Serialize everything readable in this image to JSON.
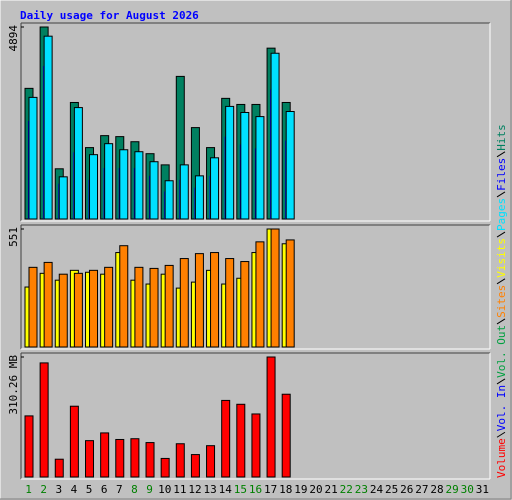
{
  "chart_data": [
    {
      "type": "bar",
      "title": "Daily usage for August 2026",
      "categories": [
        "1",
        "2",
        "3",
        "4",
        "5",
        "6",
        "7",
        "8",
        "9",
        "10",
        "11",
        "12",
        "13",
        "14",
        "15",
        "16",
        "17",
        "18",
        "19",
        "20",
        "21",
        "22",
        "23",
        "24",
        "25",
        "26",
        "27",
        "28",
        "29",
        "30",
        "31"
      ],
      "category_colors": [
        "#008000",
        "#008000",
        "#000000",
        "#000000",
        "#000000",
        "#000000",
        "#000000",
        "#008000",
        "#008000",
        "#000000",
        "#000000",
        "#000000",
        "#000000",
        "#000000",
        "#008000",
        "#008000",
        "#000000",
        "#000000",
        "#000000",
        "#000000",
        "#000000",
        "#008000",
        "#008000",
        "#000000",
        "#000000",
        "#000000",
        "#000000",
        "#000000",
        "#008000",
        "#008000",
        "#000000"
      ],
      "ylim": [
        0,
        4894
      ],
      "yticks": [
        4894
      ],
      "series": [
        {
          "name": "Hits",
          "color": "#008060",
          "values": [
            3330,
            4894,
            1280,
            2970,
            1820,
            2125,
            2100,
            1970,
            1665,
            1380,
            3635,
            2330,
            1820,
            3075,
            2920,
            2920,
            4355,
            2970,
            null,
            null,
            null,
            null,
            null,
            null,
            null,
            null,
            null,
            null,
            null,
            null,
            null
          ]
        },
        {
          "name": "Files",
          "color": "#0000ff",
          "values": [
            2500,
            3900,
            900,
            1700,
            1000,
            1300,
            1300,
            1300,
            1100,
            700,
            1000,
            800,
            1100,
            2100,
            1900,
            1800,
            3300,
            2000,
            null,
            null,
            null,
            null,
            null,
            null,
            null,
            null,
            null,
            null,
            null,
            null,
            null
          ]
        },
        {
          "name": "Pages",
          "color": "#00e0ff",
          "values": [
            3100,
            4660,
            1075,
            2840,
            1640,
            1920,
            1765,
            1715,
            1460,
            975,
            1380,
            1100,
            1560,
            2870,
            2715,
            2610,
            4225,
            2740,
            null,
            null,
            null,
            null,
            null,
            null,
            null,
            null,
            null,
            null,
            null,
            null,
            null
          ]
        }
      ]
    },
    {
      "type": "bar",
      "ylim": [
        0,
        551
      ],
      "yticks": [
        551
      ],
      "series": [
        {
          "name": "Visits",
          "color": "#ffff00",
          "values": [
            280,
            344,
            312,
            358,
            349,
            340,
            441,
            312,
            294,
            340,
            275,
            303,
            358,
            294,
            321,
            441,
            551,
            482,
            null,
            null,
            null,
            null,
            null,
            null,
            null,
            null,
            null,
            null,
            null,
            null,
            null
          ]
        },
        {
          "name": "Sites",
          "color": "#ff8000",
          "values": [
            372,
            395,
            340,
            344,
            358,
            372,
            473,
            372,
            367,
            381,
            413,
            436,
            441,
            413,
            399,
            491,
            551,
            500,
            null,
            null,
            null,
            null,
            null,
            null,
            null,
            null,
            null,
            null,
            null,
            null,
            null
          ]
        }
      ]
    },
    {
      "type": "bar",
      "ylim": [
        0,
        310.26
      ],
      "yticks": [
        {
          "value": 310.26,
          "label": "310.26 MB"
        }
      ],
      "series": [
        {
          "name": "Vol. Out",
          "color": "#00a040",
          "values": [
            null,
            null,
            null,
            null,
            null,
            null,
            null,
            null,
            null,
            null,
            null,
            null,
            null,
            null,
            null,
            null,
            null,
            null,
            null,
            null,
            null,
            null,
            null,
            null,
            null,
            null,
            null,
            null,
            null,
            null,
            null
          ]
        },
        {
          "name": "Vol. In",
          "color": "#0000ff",
          "values": [
            null,
            null,
            null,
            null,
            null,
            null,
            null,
            null,
            null,
            null,
            null,
            null,
            null,
            null,
            null,
            null,
            null,
            null,
            null,
            null,
            null,
            null,
            null,
            null,
            null,
            null,
            null,
            null,
            null,
            null,
            null
          ]
        },
        {
          "name": "Volume",
          "color": "#ff0000",
          "values": [
            158,
            295,
            46,
            183,
            94,
            114,
            97,
            99,
            89,
            48,
            86,
            58,
            81,
            198,
            188,
            163,
            310.26,
            214,
            null,
            null,
            null,
            null,
            null,
            null,
            null,
            null,
            null,
            null,
            null,
            null,
            null
          ]
        }
      ]
    }
  ]
}
